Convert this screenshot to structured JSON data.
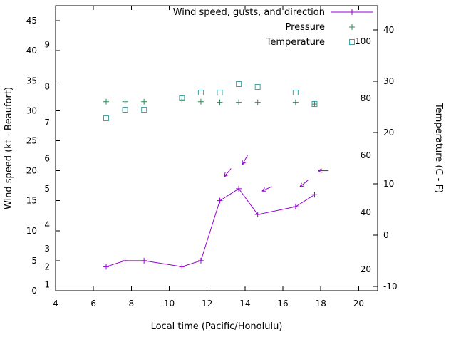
{
  "chart_data": {
    "type": "line",
    "title": "",
    "xlabel": "Local time (Pacific/Honolulu)",
    "ylabel_left": "Wind speed (kt - Beaufort)",
    "ylabel_right": "Temperature (C - F)",
    "xlim": [
      4,
      21
    ],
    "x_ticks": [
      4,
      6,
      8,
      10,
      12,
      14,
      16,
      18,
      20
    ],
    "ylim_kt": [
      0,
      47.5
    ],
    "y_ticks_kt": [
      0,
      5,
      10,
      15,
      20,
      25,
      30,
      35,
      40,
      45
    ],
    "beaufort_ticks": [
      {
        "b": 1,
        "kt": 1
      },
      {
        "b": 2,
        "kt": 4
      },
      {
        "b": 3,
        "kt": 7
      },
      {
        "b": 4,
        "kt": 11
      },
      {
        "b": 5,
        "kt": 17
      },
      {
        "b": 6,
        "kt": 22
      },
      {
        "b": 7,
        "kt": 28
      },
      {
        "b": 8,
        "kt": 34
      },
      {
        "b": 9,
        "kt": 41
      }
    ],
    "y2lim_f": [
      12.5,
      112.5
    ],
    "y2_ticks_c": [
      -10,
      0,
      10,
      20,
      30,
      40
    ],
    "y2_ticks_f": [
      20,
      40,
      60,
      80,
      100
    ],
    "grid": false,
    "legend_position": "top-right-inside",
    "legend": [
      {
        "key": "wind",
        "label": "Wind speed, gusts, and direction",
        "sample": "line-plus"
      },
      {
        "key": "pressure",
        "label": "Pressure",
        "sample": "plus"
      },
      {
        "key": "temperature",
        "label": "Temperature",
        "sample": "square"
      }
    ],
    "colors": {
      "wind": "#9400d3",
      "pressure": "#2e8b57",
      "temperature": "#45a3a3",
      "axis": "#000000",
      "background": "#ffffff"
    },
    "series": {
      "wind": {
        "name": "Wind speed, gusts, and direction",
        "marker": "plus",
        "x": [
          6.67,
          7.67,
          8.67,
          10.67,
          11.67,
          12.67,
          13.67,
          14.67,
          16.67,
          17.67
        ],
        "y_kt": [
          4,
          5,
          5,
          4,
          5,
          15,
          17,
          12.7,
          14,
          16
        ]
      },
      "pressure": {
        "name": "Pressure",
        "marker": "plus",
        "x": [
          6.67,
          7.67,
          8.67,
          10.67,
          11.67,
          12.67,
          13.67,
          14.67,
          16.67,
          17.67
        ],
        "y_kt": [
          31.5,
          31.5,
          31.5,
          31.8,
          31.5,
          31.4,
          31.4,
          31.4,
          31.4,
          31.1
        ]
      },
      "temperature": {
        "name": "Temperature",
        "marker": "square",
        "x": [
          6.67,
          7.67,
          8.67,
          10.67,
          11.67,
          12.67,
          13.67,
          14.67,
          16.67,
          17.67
        ],
        "y_f": [
          73,
          76,
          76,
          80,
          82,
          82,
          85,
          84,
          82,
          78
        ]
      }
    },
    "wind_direction_arrows": [
      {
        "x": 12.9,
        "y_kt": 19.0,
        "angle_deg": 130
      },
      {
        "x": 13.85,
        "y_kt": 21.0,
        "angle_deg": 120
      },
      {
        "x": 14.9,
        "y_kt": 16.6,
        "angle_deg": 155
      },
      {
        "x": 16.9,
        "y_kt": 17.3,
        "angle_deg": 140
      },
      {
        "x": 17.85,
        "y_kt": 20.0,
        "angle_deg": 180
      }
    ]
  }
}
